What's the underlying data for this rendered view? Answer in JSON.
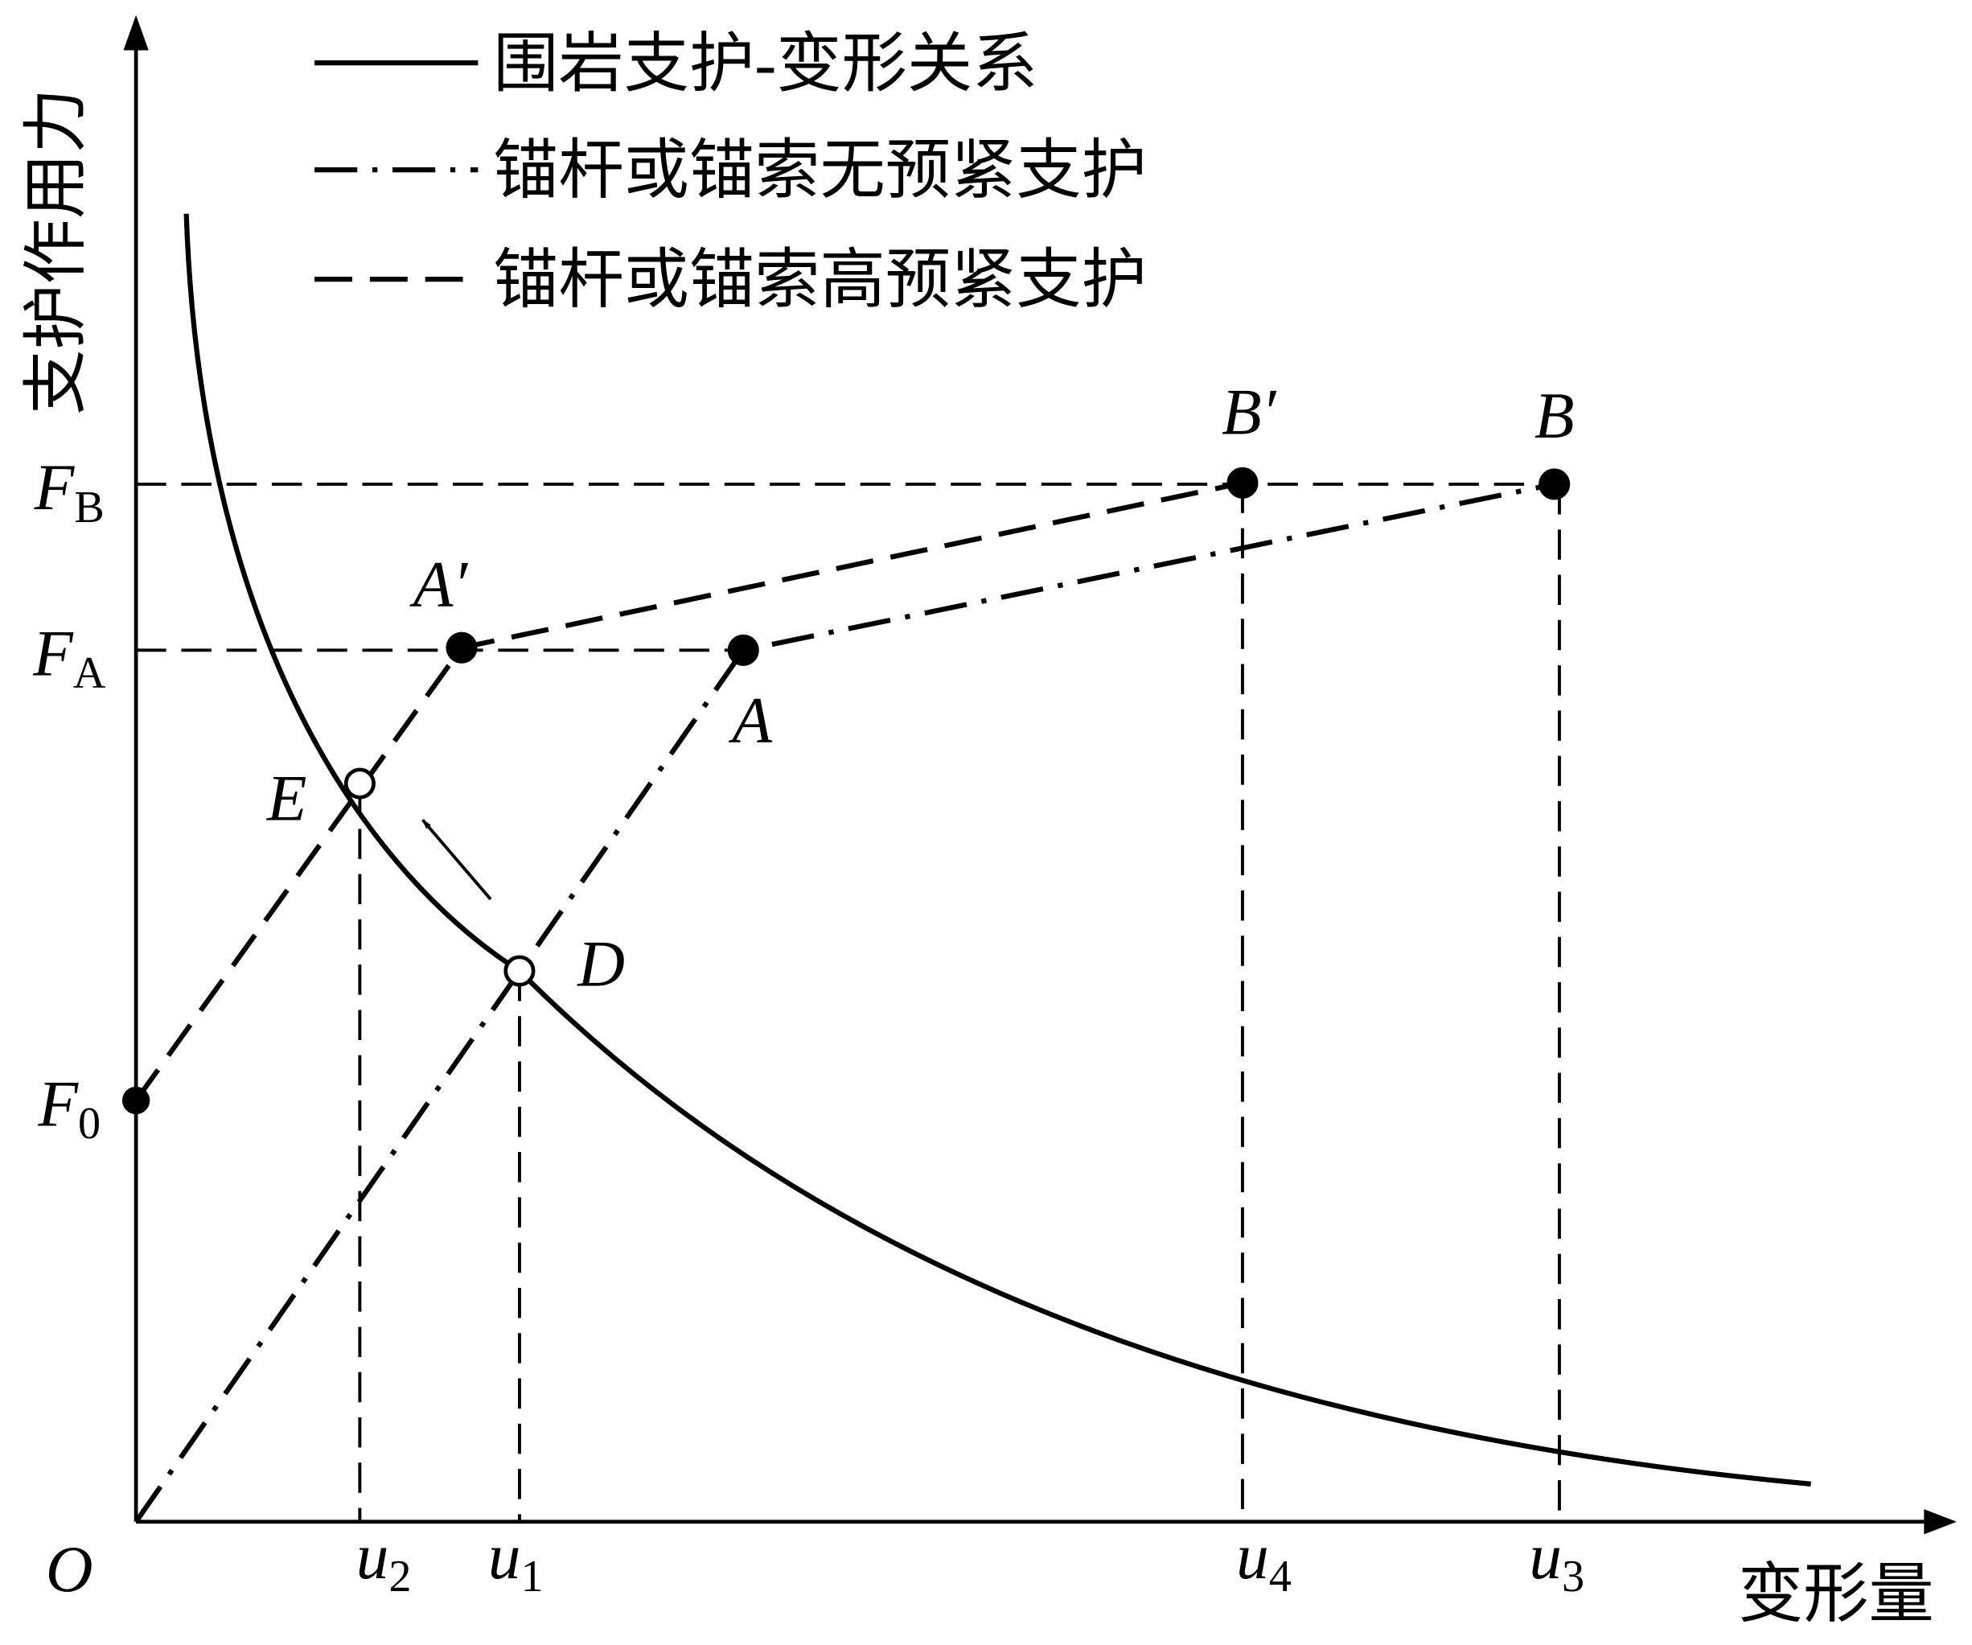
{
  "legend": [
    "围岩支护-变形关系",
    "锚杆或锚索无预紧支护",
    "锚杆或锚索高预紧支护"
  ],
  "axes": {
    "y_label": "支护作用力",
    "x_label": "变形量",
    "origin": "O"
  },
  "y_ticks": [
    {
      "symbol": "F",
      "sub": "B"
    },
    {
      "symbol": "F",
      "sub": "A"
    },
    {
      "symbol": "F",
      "sub": "0"
    }
  ],
  "x_ticks": [
    {
      "symbol": "u",
      "sub": "2"
    },
    {
      "symbol": "u",
      "sub": "1"
    },
    {
      "symbol": "u",
      "sub": "4"
    },
    {
      "symbol": "u",
      "sub": "3"
    }
  ],
  "points": [
    "A′",
    "A",
    "B′",
    "B",
    "E",
    "D"
  ]
}
